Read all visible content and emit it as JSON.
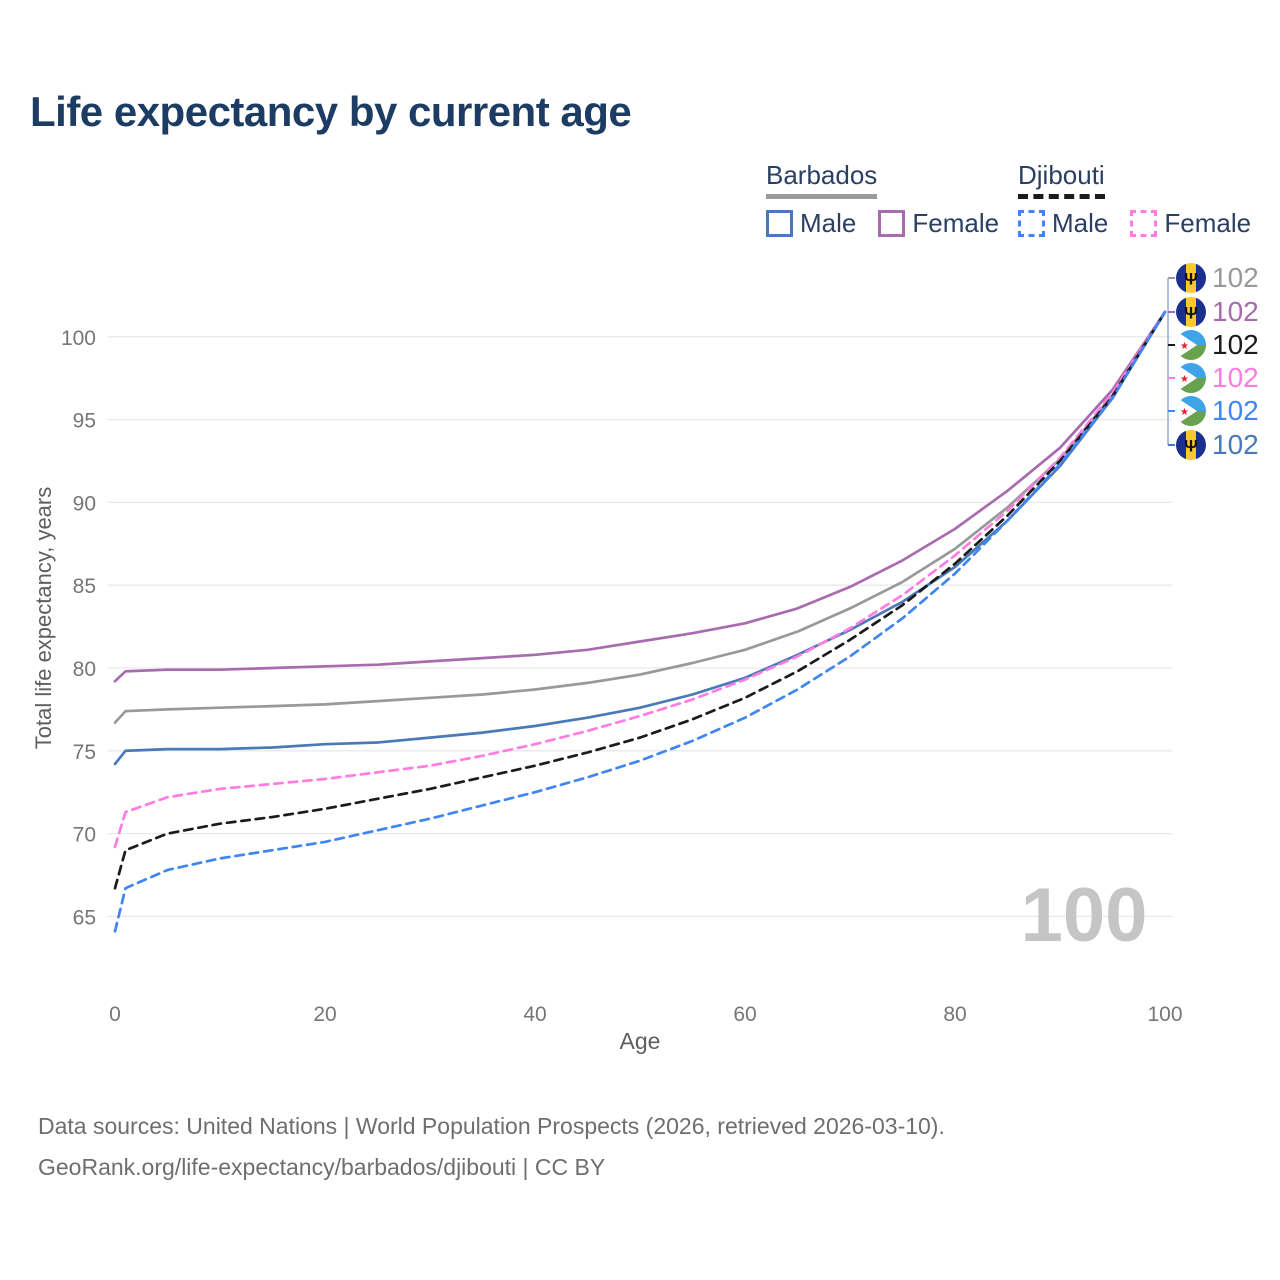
{
  "title": "Life expectancy by current age",
  "watermark_age": "100",
  "legend": {
    "groups": [
      {
        "country": "Barbados",
        "line_style": "solid",
        "underline_color": "#9a9a9a",
        "items": [
          {
            "label": "Male",
            "color": "#4a79b8",
            "dash": false
          },
          {
            "label": "Female",
            "color": "#a86bae",
            "dash": false
          }
        ]
      },
      {
        "country": "Djibouti",
        "line_style": "dashed",
        "underline_color": "#1b1b1b",
        "items": [
          {
            "label": "Male",
            "color": "#3f86f2",
            "dash": true
          },
          {
            "label": "Female",
            "color": "#ff7ce1",
            "dash": true
          }
        ]
      }
    ]
  },
  "end_labels": [
    {
      "flag": "barbados",
      "value": "102",
      "color": "#999999"
    },
    {
      "flag": "barbados",
      "value": "102",
      "color": "#a86bae"
    },
    {
      "flag": "djibouti",
      "value": "102",
      "color": "#1b1b1b"
    },
    {
      "flag": "djibouti",
      "value": "102",
      "color": "#ff7ce1"
    },
    {
      "flag": "djibouti",
      "value": "102",
      "color": "#3f86f2"
    },
    {
      "flag": "barbados",
      "value": "102",
      "color": "#4a79b8"
    }
  ],
  "chart_data": {
    "type": "line",
    "title": "Life expectancy by current age",
    "xlabel": "Age",
    "ylabel": "Total life expectancy, years",
    "xlim": [
      0,
      100
    ],
    "ylim": [
      62,
      103
    ],
    "xticks": [
      0,
      20,
      40,
      60,
      80,
      100
    ],
    "yticks": [
      65,
      70,
      75,
      80,
      85,
      90,
      95,
      100
    ],
    "grid": "horizontal-only",
    "legend_position": "top-right",
    "x": [
      0,
      1,
      5,
      10,
      15,
      20,
      25,
      30,
      35,
      40,
      45,
      50,
      55,
      60,
      65,
      70,
      75,
      80,
      85,
      90,
      95,
      100
    ],
    "series": [
      {
        "name": "Barbados Total",
        "color": "#999999",
        "dash": false,
        "values": [
          76.7,
          77.4,
          77.5,
          77.6,
          77.7,
          77.8,
          78.0,
          78.2,
          78.4,
          78.7,
          79.1,
          79.6,
          80.3,
          81.1,
          82.2,
          83.6,
          85.2,
          87.2,
          89.7,
          92.6,
          96.5,
          101.5
        ]
      },
      {
        "name": "Barbados Female",
        "color": "#a86bae",
        "dash": false,
        "values": [
          79.2,
          79.8,
          79.9,
          79.9,
          80.0,
          80.1,
          80.2,
          80.4,
          80.6,
          80.8,
          81.1,
          81.6,
          82.1,
          82.7,
          83.6,
          84.9,
          86.5,
          88.4,
          90.7,
          93.3,
          96.8,
          101.5
        ]
      },
      {
        "name": "Barbados Male",
        "color": "#4a79b8",
        "dash": false,
        "values": [
          74.2,
          75.0,
          75.1,
          75.1,
          75.2,
          75.4,
          75.5,
          75.8,
          76.1,
          76.5,
          77.0,
          77.6,
          78.4,
          79.4,
          80.8,
          82.3,
          84.0,
          86.1,
          88.9,
          92.2,
          96.3,
          101.5
        ]
      },
      {
        "name": "Djibouti Female",
        "color": "#ff7ce1",
        "dash": true,
        "values": [
          69.2,
          71.3,
          72.2,
          72.7,
          73.0,
          73.3,
          73.7,
          74.1,
          74.7,
          75.4,
          76.2,
          77.1,
          78.1,
          79.3,
          80.7,
          82.4,
          84.4,
          86.8,
          89.5,
          92.7,
          96.6,
          101.5
        ]
      },
      {
        "name": "Djibouti Total",
        "color": "#1b1b1b",
        "dash": true,
        "values": [
          66.7,
          69.0,
          70.0,
          70.6,
          71.0,
          71.5,
          72.1,
          72.7,
          73.4,
          74.1,
          74.9,
          75.8,
          76.9,
          78.2,
          79.8,
          81.7,
          83.8,
          86.3,
          89.2,
          92.5,
          96.4,
          101.5
        ]
      },
      {
        "name": "Djibouti Male",
        "color": "#3f86f2",
        "dash": true,
        "values": [
          64.1,
          66.7,
          67.8,
          68.5,
          69.0,
          69.5,
          70.2,
          70.9,
          71.7,
          72.5,
          73.4,
          74.4,
          75.6,
          77.0,
          78.7,
          80.7,
          83.0,
          85.7,
          88.9,
          92.3,
          96.3,
          101.5
        ]
      }
    ]
  },
  "source": {
    "line1": "Data sources: United Nations | World Population Prospects (2026, retrieved 2026-03-10).",
    "line2": "GeoRank.org/life-expectancy/barbados/djibouti | CC BY"
  }
}
